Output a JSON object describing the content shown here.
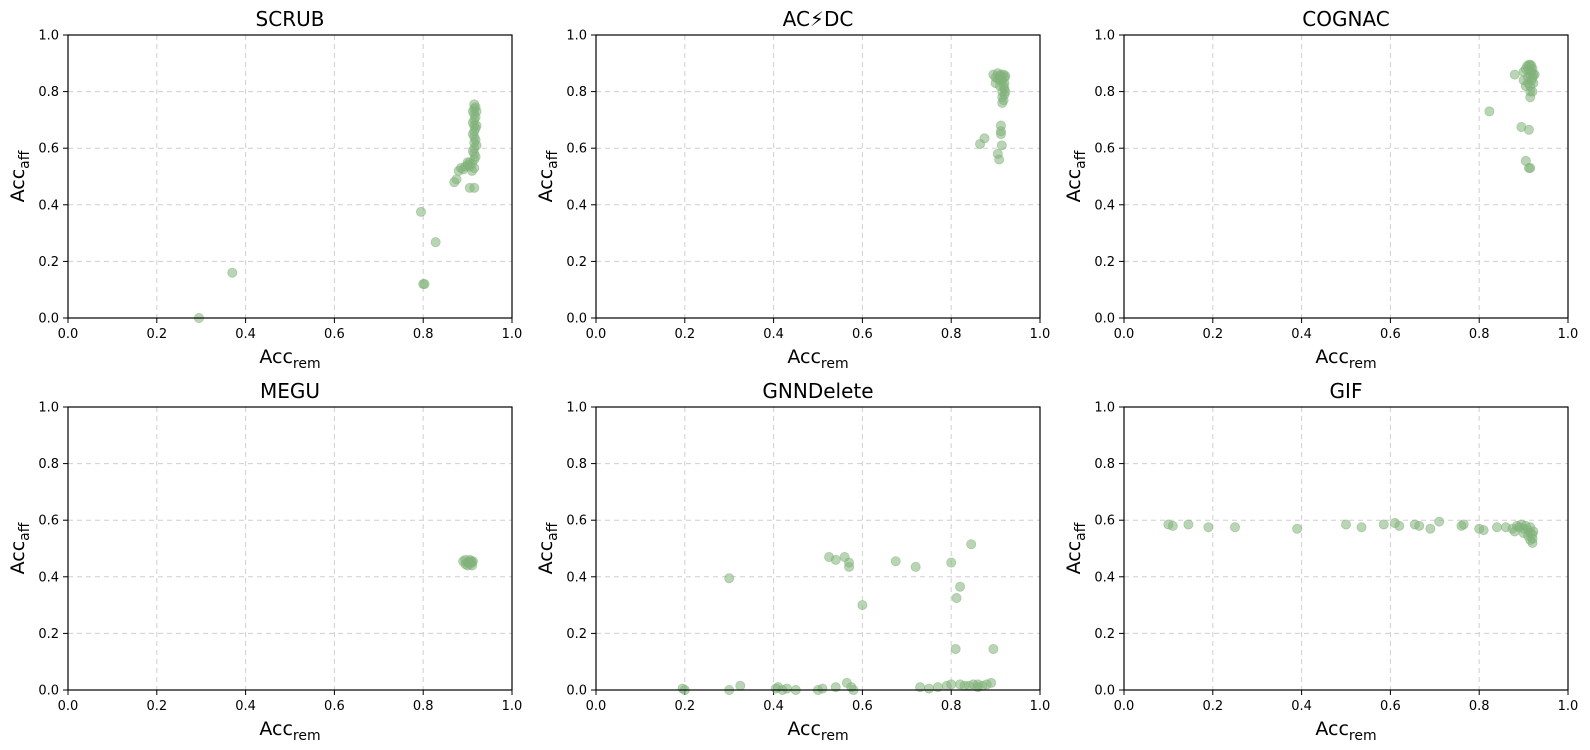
{
  "figure": {
    "rows": 2,
    "cols": 3,
    "point_color": "#82b27a",
    "point_opacity": 0.55
  },
  "chart_data": [
    {
      "type": "scatter",
      "title": "SCRUB",
      "xlabel": {
        "base": "Acc",
        "sub": "rem"
      },
      "ylabel": {
        "base": "Acc",
        "sub": "aff"
      },
      "xlim": [
        0,
        1
      ],
      "ylim": [
        0,
        1
      ],
      "xticks": [
        "0.0",
        "0.2",
        "0.4",
        "0.6",
        "0.8",
        "1.0"
      ],
      "yticks": [
        "0.0",
        "0.2",
        "0.4",
        "0.6",
        "0.8",
        "1.0"
      ],
      "grid": true,
      "points": [
        [
          0.295,
          0.0
        ],
        [
          0.37,
          0.16
        ],
        [
          0.795,
          0.375
        ],
        [
          0.803,
          0.12
        ],
        [
          0.8,
          0.12
        ],
        [
          0.828,
          0.268
        ],
        [
          0.87,
          0.48
        ],
        [
          0.875,
          0.49
        ],
        [
          0.88,
          0.52
        ],
        [
          0.885,
          0.53
        ],
        [
          0.89,
          0.525
        ],
        [
          0.895,
          0.535
        ],
        [
          0.9,
          0.54
        ],
        [
          0.905,
          0.46
        ],
        [
          0.905,
          0.55
        ],
        [
          0.91,
          0.52
        ],
        [
          0.91,
          0.545
        ],
        [
          0.915,
          0.46
        ],
        [
          0.915,
          0.53
        ],
        [
          0.915,
          0.56
        ],
        [
          0.915,
          0.58
        ],
        [
          0.915,
          0.6
        ],
        [
          0.915,
          0.62
        ],
        [
          0.915,
          0.64
        ],
        [
          0.915,
          0.66
        ],
        [
          0.915,
          0.68
        ],
        [
          0.915,
          0.7
        ],
        [
          0.915,
          0.72
        ],
        [
          0.915,
          0.74
        ],
        [
          0.915,
          0.755
        ],
        [
          0.918,
          0.57
        ],
        [
          0.918,
          0.63
        ],
        [
          0.918,
          0.67
        ],
        [
          0.918,
          0.71
        ],
        [
          0.918,
          0.745
        ],
        [
          0.912,
          0.59
        ],
        [
          0.912,
          0.65
        ],
        [
          0.912,
          0.69
        ],
        [
          0.912,
          0.73
        ],
        [
          0.905,
          0.535
        ],
        [
          0.9,
          0.55
        ],
        [
          0.92,
          0.61
        ],
        [
          0.92,
          0.68
        ],
        [
          0.92,
          0.73
        ]
      ]
    },
    {
      "type": "scatter",
      "title": "AC⚡DC",
      "xlabel": {
        "base": "Acc",
        "sub": "rem"
      },
      "ylabel": {
        "base": "Acc",
        "sub": "aff"
      },
      "xlim": [
        0,
        1
      ],
      "ylim": [
        0,
        1
      ],
      "xticks": [
        "0.0",
        "0.2",
        "0.4",
        "0.6",
        "0.8",
        "1.0"
      ],
      "yticks": [
        "0.0",
        "0.2",
        "0.4",
        "0.6",
        "0.8",
        "1.0"
      ],
      "grid": true,
      "points": [
        [
          0.865,
          0.615
        ],
        [
          0.875,
          0.635
        ],
        [
          0.895,
          0.86
        ],
        [
          0.9,
          0.85
        ],
        [
          0.9,
          0.83
        ],
        [
          0.905,
          0.58
        ],
        [
          0.905,
          0.865
        ],
        [
          0.908,
          0.56
        ],
        [
          0.91,
          0.84
        ],
        [
          0.91,
          0.82
        ],
        [
          0.912,
          0.86
        ],
        [
          0.912,
          0.68
        ],
        [
          0.912,
          0.66
        ],
        [
          0.912,
          0.65
        ],
        [
          0.914,
          0.61
        ],
        [
          0.915,
          0.8
        ],
        [
          0.915,
          0.78
        ],
        [
          0.915,
          0.76
        ],
        [
          0.915,
          0.84
        ],
        [
          0.918,
          0.86
        ],
        [
          0.918,
          0.82
        ],
        [
          0.92,
          0.85
        ],
        [
          0.92,
          0.83
        ],
        [
          0.92,
          0.81
        ],
        [
          0.92,
          0.79
        ],
        [
          0.922,
          0.855
        ],
        [
          0.922,
          0.8
        ],
        [
          0.91,
          0.855
        ],
        [
          0.905,
          0.845
        ],
        [
          0.918,
          0.77
        ]
      ]
    },
    {
      "type": "scatter",
      "title": "COGNAC",
      "xlabel": {
        "base": "Acc",
        "sub": "rem"
      },
      "ylabel": {
        "base": "Acc",
        "sub": "aff"
      },
      "xlim": [
        0,
        1
      ],
      "ylim": [
        0,
        1
      ],
      "xticks": [
        "0.0",
        "0.2",
        "0.4",
        "0.6",
        "0.8",
        "1.0"
      ],
      "yticks": [
        "0.0",
        "0.2",
        "0.4",
        "0.6",
        "0.8",
        "1.0"
      ],
      "grid": true,
      "points": [
        [
          0.823,
          0.73
        ],
        [
          0.88,
          0.86
        ],
        [
          0.895,
          0.675
        ],
        [
          0.9,
          0.84
        ],
        [
          0.9,
          0.87
        ],
        [
          0.905,
          0.555
        ],
        [
          0.905,
          0.82
        ],
        [
          0.908,
          0.89
        ],
        [
          0.91,
          0.85
        ],
        [
          0.91,
          0.83
        ],
        [
          0.912,
          0.53
        ],
        [
          0.912,
          0.665
        ],
        [
          0.912,
          0.875
        ],
        [
          0.915,
          0.53
        ],
        [
          0.915,
          0.78
        ],
        [
          0.915,
          0.8
        ],
        [
          0.915,
          0.82
        ],
        [
          0.915,
          0.86
        ],
        [
          0.915,
          0.895
        ],
        [
          0.918,
          0.84
        ],
        [
          0.918,
          0.87
        ],
        [
          0.92,
          0.8
        ],
        [
          0.92,
          0.85
        ],
        [
          0.92,
          0.88
        ],
        [
          0.922,
          0.86
        ],
        [
          0.922,
          0.83
        ],
        [
          0.925,
          0.86
        ],
        [
          0.912,
          0.895
        ],
        [
          0.905,
          0.88
        ],
        [
          0.918,
          0.89
        ]
      ]
    },
    {
      "type": "scatter",
      "title": "MEGU",
      "xlabel": {
        "base": "Acc",
        "sub": "rem"
      },
      "ylabel": {
        "base": "Acc",
        "sub": "aff"
      },
      "xlim": [
        0,
        1
      ],
      "ylim": [
        0,
        1
      ],
      "xticks": [
        "0.0",
        "0.2",
        "0.4",
        "0.6",
        "0.8",
        "1.0"
      ],
      "yticks": [
        "0.0",
        "0.2",
        "0.4",
        "0.6",
        "0.8",
        "1.0"
      ],
      "grid": true,
      "points": [
        [
          0.89,
          0.455
        ],
        [
          0.895,
          0.46
        ],
        [
          0.9,
          0.45
        ],
        [
          0.9,
          0.44
        ],
        [
          0.905,
          0.46
        ],
        [
          0.905,
          0.445
        ],
        [
          0.908,
          0.455
        ],
        [
          0.91,
          0.45
        ],
        [
          0.91,
          0.44
        ],
        [
          0.912,
          0.455
        ],
        [
          0.895,
          0.445
        ],
        [
          0.903,
          0.452
        ]
      ]
    },
    {
      "type": "scatter",
      "title": "GNNDelete",
      "xlabel": {
        "base": "Acc",
        "sub": "rem"
      },
      "ylabel": {
        "base": "Acc",
        "sub": "aff"
      },
      "xlim": [
        0,
        1
      ],
      "ylim": [
        0,
        1
      ],
      "xticks": [
        "0.0",
        "0.2",
        "0.4",
        "0.6",
        "0.8",
        "1.0"
      ],
      "yticks": [
        "0.0",
        "0.2",
        "0.4",
        "0.6",
        "0.8",
        "1.0"
      ],
      "grid": true,
      "points": [
        [
          0.195,
          0.005
        ],
        [
          0.2,
          0.0
        ],
        [
          0.3,
          0.395
        ],
        [
          0.3,
          0.0
        ],
        [
          0.325,
          0.015
        ],
        [
          0.405,
          0.005
        ],
        [
          0.41,
          0.01
        ],
        [
          0.42,
          0.0
        ],
        [
          0.43,
          0.005
        ],
        [
          0.45,
          0.0
        ],
        [
          0.5,
          0.0
        ],
        [
          0.51,
          0.005
        ],
        [
          0.525,
          0.47
        ],
        [
          0.54,
          0.46
        ],
        [
          0.54,
          0.01
        ],
        [
          0.56,
          0.47
        ],
        [
          0.565,
          0.025
        ],
        [
          0.57,
          0.45
        ],
        [
          0.57,
          0.435
        ],
        [
          0.575,
          0.01
        ],
        [
          0.58,
          0.0
        ],
        [
          0.6,
          0.3
        ],
        [
          0.675,
          0.455
        ],
        [
          0.72,
          0.435
        ],
        [
          0.73,
          0.01
        ],
        [
          0.75,
          0.005
        ],
        [
          0.77,
          0.01
        ],
        [
          0.79,
          0.015
        ],
        [
          0.8,
          0.45
        ],
        [
          0.81,
          0.145
        ],
        [
          0.812,
          0.325
        ],
        [
          0.82,
          0.365
        ],
        [
          0.83,
          0.015
        ],
        [
          0.845,
          0.515
        ],
        [
          0.85,
          0.02
        ],
        [
          0.86,
          0.01
        ],
        [
          0.87,
          0.015
        ],
        [
          0.88,
          0.02
        ],
        [
          0.89,
          0.025
        ],
        [
          0.895,
          0.145
        ],
        [
          0.8,
          0.02
        ],
        [
          0.82,
          0.02
        ],
        [
          0.84,
          0.015
        ],
        [
          0.86,
          0.02
        ]
      ]
    },
    {
      "type": "scatter",
      "title": "GIF",
      "xlabel": {
        "base": "Acc",
        "sub": "rem"
      },
      "ylabel": {
        "base": "Acc",
        "sub": "aff"
      },
      "xlim": [
        0,
        1
      ],
      "ylim": [
        0,
        1
      ],
      "xticks": [
        "0.0",
        "0.2",
        "0.4",
        "0.6",
        "0.8",
        "1.0"
      ],
      "yticks": [
        "0.0",
        "0.2",
        "0.4",
        "0.6",
        "0.8",
        "1.0"
      ],
      "grid": true,
      "points": [
        [
          0.1,
          0.585
        ],
        [
          0.11,
          0.58
        ],
        [
          0.145,
          0.585
        ],
        [
          0.19,
          0.575
        ],
        [
          0.25,
          0.575
        ],
        [
          0.39,
          0.57
        ],
        [
          0.5,
          0.585
        ],
        [
          0.535,
          0.575
        ],
        [
          0.585,
          0.585
        ],
        [
          0.61,
          0.59
        ],
        [
          0.62,
          0.58
        ],
        [
          0.655,
          0.585
        ],
        [
          0.665,
          0.58
        ],
        [
          0.69,
          0.57
        ],
        [
          0.71,
          0.595
        ],
        [
          0.76,
          0.58
        ],
        [
          0.765,
          0.585
        ],
        [
          0.8,
          0.57
        ],
        [
          0.81,
          0.565
        ],
        [
          0.84,
          0.575
        ],
        [
          0.86,
          0.575
        ],
        [
          0.875,
          0.57
        ],
        [
          0.88,
          0.56
        ],
        [
          0.885,
          0.58
        ],
        [
          0.89,
          0.575
        ],
        [
          0.895,
          0.585
        ],
        [
          0.9,
          0.57
        ],
        [
          0.9,
          0.555
        ],
        [
          0.905,
          0.58
        ],
        [
          0.91,
          0.565
        ],
        [
          0.91,
          0.545
        ],
        [
          0.915,
          0.575
        ],
        [
          0.915,
          0.555
        ],
        [
          0.915,
          0.53
        ],
        [
          0.92,
          0.55
        ],
        [
          0.92,
          0.535
        ],
        [
          0.92,
          0.52
        ],
        [
          0.922,
          0.56
        ]
      ]
    }
  ]
}
